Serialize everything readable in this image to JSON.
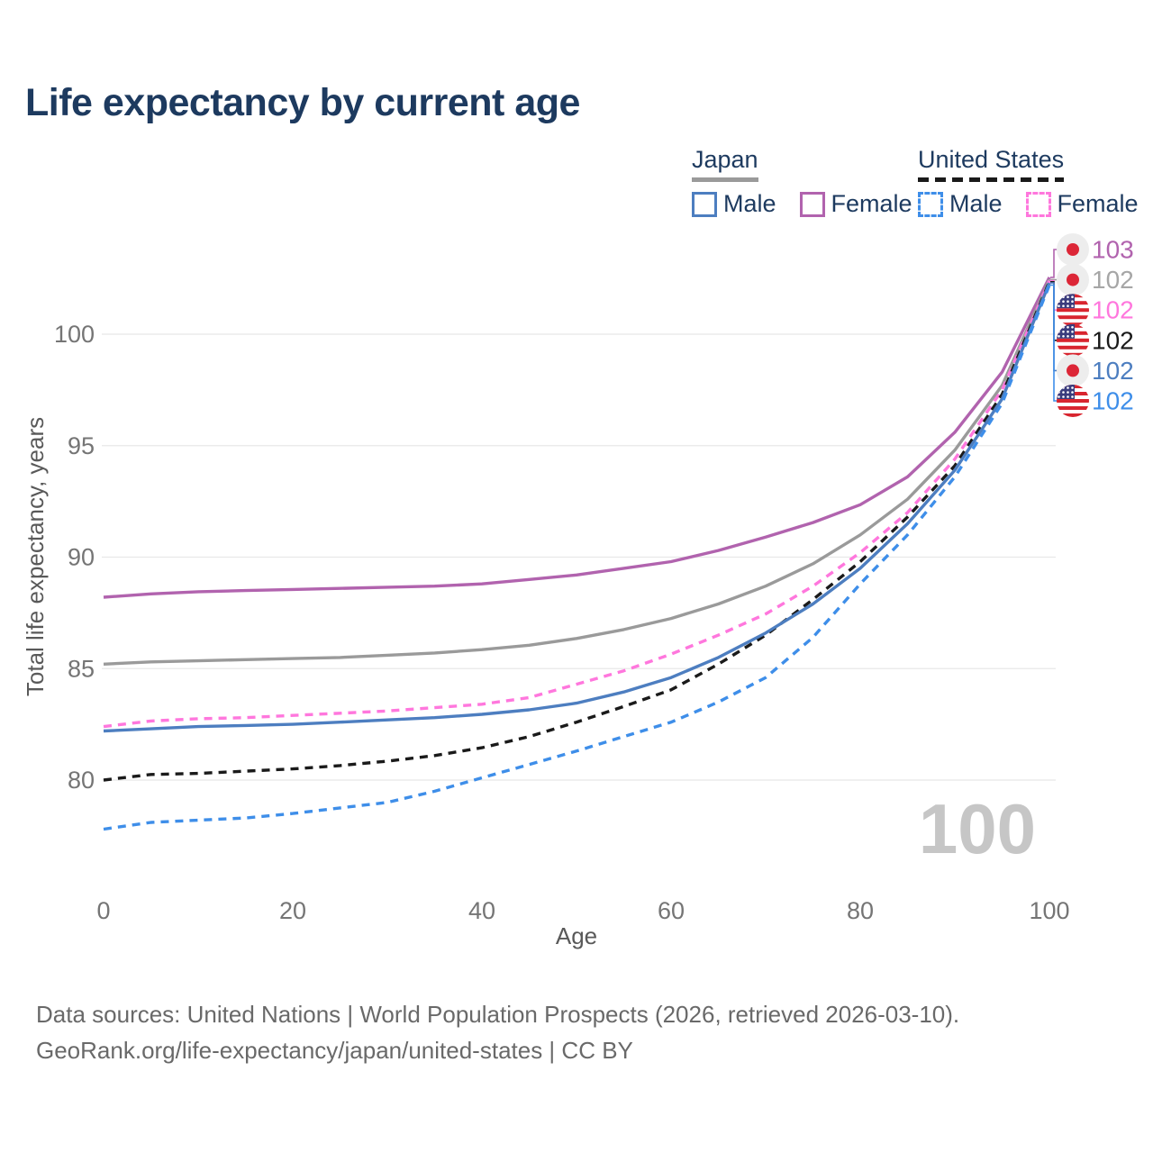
{
  "title": "Life expectancy by current age",
  "watermark": "100",
  "colors": {
    "title_navy": "#1d3a5f",
    "japan_female": "#b163ae",
    "japan_both": "#9a9a9a",
    "japan_male": "#4d7ec0",
    "us_female": "#ff77dd",
    "us_both": "#1a1a1a",
    "us_male": "#3e8ee9",
    "gridline": "#e8e8e8",
    "tick_text": "#757575",
    "axis_title_text": "#595959",
    "watermark_gray": "#c6c6c6",
    "flag_japan_red": "#dc2637",
    "flag_us_red": "#d8252f",
    "flag_us_blue": "#3a3c7d"
  },
  "legend": {
    "groups": [
      {
        "id": "japan",
        "label": "Japan",
        "line_color": "#9a9a9a",
        "line_style": "solid",
        "items": [
          {
            "label": "Male",
            "color": "#4d7ec0",
            "style": "solid"
          },
          {
            "label": "Female",
            "color": "#b163ae",
            "style": "solid"
          }
        ]
      },
      {
        "id": "united-states",
        "label": "United States",
        "line_color": "#1a1a1a",
        "line_style": "dashed",
        "items": [
          {
            "label": "Male",
            "color": "#3e8ee9",
            "style": "dashed"
          },
          {
            "label": "Female",
            "color": "#ff77dd",
            "style": "dashed"
          }
        ]
      }
    ]
  },
  "chart_data": {
    "type": "line",
    "title": "Life expectancy by current age",
    "xlabel": "Age",
    "ylabel": "Total life expectancy, years",
    "x_ticks": [
      0,
      20,
      40,
      60,
      80,
      100
    ],
    "y_ticks": [
      80,
      85,
      90,
      95,
      100
    ],
    "xlim": [
      0,
      100
    ],
    "ylim": [
      77,
      103.5
    ],
    "grid": "horizontal",
    "legend_position": "top-right",
    "x": [
      0,
      5,
      10,
      15,
      20,
      25,
      30,
      35,
      40,
      45,
      50,
      55,
      60,
      65,
      70,
      75,
      80,
      85,
      90,
      95,
      100
    ],
    "series": [
      {
        "name": "Japan Female",
        "country": "Japan",
        "sex": "Female",
        "color": "#b163ae",
        "dash": false,
        "flag": "japan",
        "end_label": "103",
        "values": [
          88.2,
          88.35,
          88.45,
          88.5,
          88.55,
          88.6,
          88.65,
          88.7,
          88.8,
          89.0,
          89.2,
          89.5,
          89.8,
          90.3,
          90.9,
          91.55,
          92.35,
          93.6,
          95.6,
          98.3,
          102.55
        ]
      },
      {
        "name": "Japan Both Sexes",
        "country": "Japan",
        "sex": "Both",
        "color": "#9a9a9a",
        "dash": false,
        "flag": "japan",
        "end_label": "102",
        "end_label_color": "#a6a6a6",
        "values": [
          85.2,
          85.3,
          85.35,
          85.4,
          85.45,
          85.5,
          85.6,
          85.7,
          85.85,
          86.05,
          86.35,
          86.75,
          87.25,
          87.9,
          88.7,
          89.7,
          91.0,
          92.6,
          94.8,
          97.7,
          102.45
        ]
      },
      {
        "name": "United States Female",
        "country": "United States",
        "sex": "Female",
        "color": "#ff77dd",
        "dash": true,
        "flag": "united-states",
        "end_label": "102",
        "values": [
          82.4,
          82.65,
          82.75,
          82.8,
          82.9,
          83.0,
          83.1,
          83.25,
          83.4,
          83.7,
          84.3,
          84.9,
          85.65,
          86.5,
          87.45,
          88.7,
          90.2,
          92.0,
          94.4,
          97.5,
          102.4
        ]
      },
      {
        "name": "United States Both Sexes",
        "country": "United States",
        "sex": "Both",
        "color": "#1a1a1a",
        "dash": true,
        "flag": "united-states",
        "end_label": "102",
        "values": [
          80.0,
          80.25,
          80.3,
          80.4,
          80.5,
          80.65,
          80.85,
          81.1,
          81.45,
          81.95,
          82.6,
          83.3,
          84.05,
          85.2,
          86.5,
          88.1,
          89.8,
          91.8,
          94.1,
          97.3,
          102.35
        ]
      },
      {
        "name": "Japan Male",
        "country": "Japan",
        "sex": "Male",
        "color": "#4d7ec0",
        "dash": false,
        "flag": "japan",
        "end_label": "102",
        "values": [
          82.2,
          82.3,
          82.4,
          82.45,
          82.5,
          82.6,
          82.7,
          82.8,
          82.95,
          83.15,
          83.45,
          83.95,
          84.6,
          85.5,
          86.6,
          87.9,
          89.5,
          91.5,
          93.9,
          97.1,
          102.3
        ]
      },
      {
        "name": "United States Male",
        "country": "United States",
        "sex": "Male",
        "color": "#3e8ee9",
        "dash": true,
        "flag": "united-states",
        "end_label": "102",
        "values": [
          77.8,
          78.1,
          78.2,
          78.3,
          78.5,
          78.75,
          79.0,
          79.5,
          80.1,
          80.7,
          81.3,
          81.95,
          82.6,
          83.5,
          84.6,
          86.4,
          88.8,
          91.0,
          93.6,
          96.9,
          102.2
        ]
      }
    ]
  },
  "footer": {
    "line1": "Data sources: United Nations | World Population Prospects (2026, retrieved 2026-03-10).",
    "line2": "GeoRank.org/life-expectancy/japan/united-states | CC BY"
  }
}
